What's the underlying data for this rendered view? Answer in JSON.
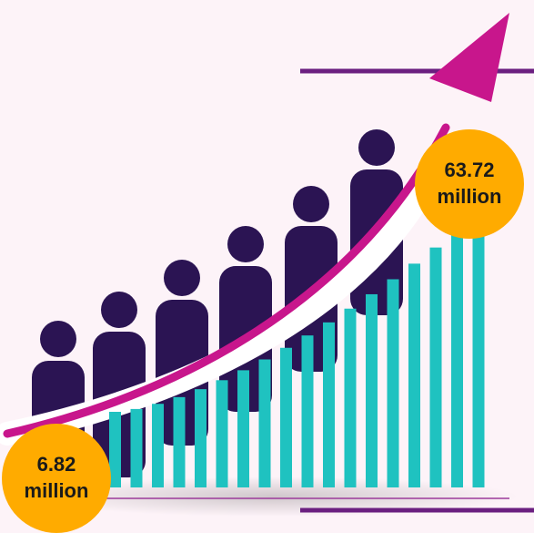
{
  "start_value": {
    "number": "6.82",
    "unit": "million"
  },
  "end_value": {
    "number": "63.72",
    "unit": "million"
  },
  "colors": {
    "background": "#fdf3f8",
    "bars": "#1fc2c0",
    "people": "#2b1453",
    "arrow": "#c8168c",
    "rule": "#6b1f80",
    "badge": "#ffab00"
  },
  "icons": [
    "person-icon",
    "trend-arrow-icon"
  ]
}
